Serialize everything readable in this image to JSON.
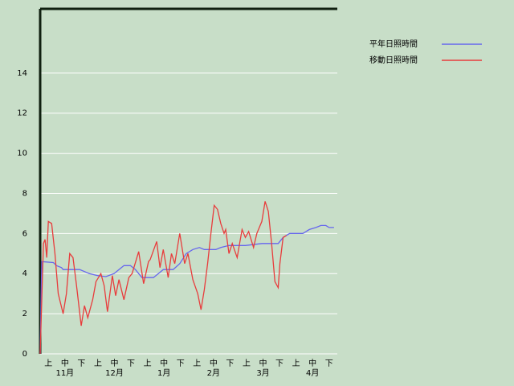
{
  "chart_data": {
    "type": "line",
    "decade_labels": [
      "上",
      "中",
      "下",
      "上",
      "中",
      "下",
      "上",
      "中",
      "下",
      "上",
      "中",
      "下",
      "上",
      "中",
      "下",
      "上",
      "中",
      "下"
    ],
    "month_labels": [
      "11月",
      "12月",
      "1月",
      "2月",
      "3月",
      "4月"
    ],
    "xlim": [
      0,
      181
    ],
    "ylim": [
      0,
      17.2
    ],
    "yticks": [
      0,
      2,
      4,
      6,
      8,
      10,
      12,
      14
    ],
    "grid": true,
    "legend": "upper right",
    "series": [
      {
        "name": "平年日照時間",
        "color": "#6666ee",
        "x": [
          0,
          1,
          8,
          10,
          13,
          14,
          24,
          27,
          30,
          35,
          40,
          45,
          48,
          51,
          55,
          58,
          62,
          69,
          72,
          75,
          81,
          85,
          89,
          93,
          97,
          100,
          107,
          110,
          115,
          125,
          135,
          145,
          148,
          152,
          160,
          164,
          168,
          171,
          174,
          176,
          179
        ],
        "values": [
          0,
          4.6,
          4.55,
          4.4,
          4.3,
          4.2,
          4.2,
          4.1,
          4.0,
          3.9,
          3.85,
          4.0,
          4.2,
          4.4,
          4.4,
          4.2,
          3.8,
          3.8,
          4.0,
          4.2,
          4.2,
          4.5,
          5.0,
          5.2,
          5.3,
          5.2,
          5.2,
          5.3,
          5.4,
          5.4,
          5.5,
          5.5,
          5.8,
          6.0,
          6.0,
          6.2,
          6.3,
          6.4,
          6.4,
          6.3,
          6.3
        ]
      },
      {
        "name": "移動日照時間",
        "color": "#e83c3c",
        "x": [
          0,
          2,
          3,
          4,
          5,
          7,
          9,
          11,
          14,
          16,
          18,
          20,
          22,
          25,
          27,
          29,
          32,
          34,
          37,
          39,
          41,
          44,
          46,
          48,
          51,
          54,
          56,
          60,
          63,
          66,
          67,
          71,
          73,
          75,
          78,
          80,
          82,
          85,
          88,
          90,
          93,
          96,
          98,
          100,
          102,
          104,
          106,
          108,
          110,
          112,
          113,
          115,
          117,
          120,
          123,
          125,
          127,
          130,
          132,
          135,
          137,
          139,
          141,
          143,
          145,
          146,
          148,
          150
        ],
        "values": [
          0,
          5.5,
          5.7,
          4.8,
          6.6,
          6.5,
          5.0,
          3.0,
          2.0,
          3.0,
          5.0,
          4.8,
          3.5,
          1.4,
          2.4,
          1.8,
          2.7,
          3.6,
          4.0,
          3.4,
          2.1,
          3.9,
          2.9,
          3.7,
          2.7,
          3.8,
          4.0,
          5.1,
          3.5,
          4.6,
          4.7,
          5.6,
          4.3,
          5.2,
          3.8,
          5.0,
          4.5,
          6.0,
          4.5,
          5.0,
          3.7,
          3.0,
          2.2,
          3.2,
          4.5,
          6.0,
          7.4,
          7.2,
          6.5,
          6.0,
          6.2,
          5.0,
          5.5,
          4.8,
          6.2,
          5.8,
          6.1,
          5.3,
          6.0,
          6.6,
          7.6,
          7.1,
          5.5,
          3.6,
          3.3,
          4.5,
          5.8,
          5.9
        ]
      }
    ]
  }
}
